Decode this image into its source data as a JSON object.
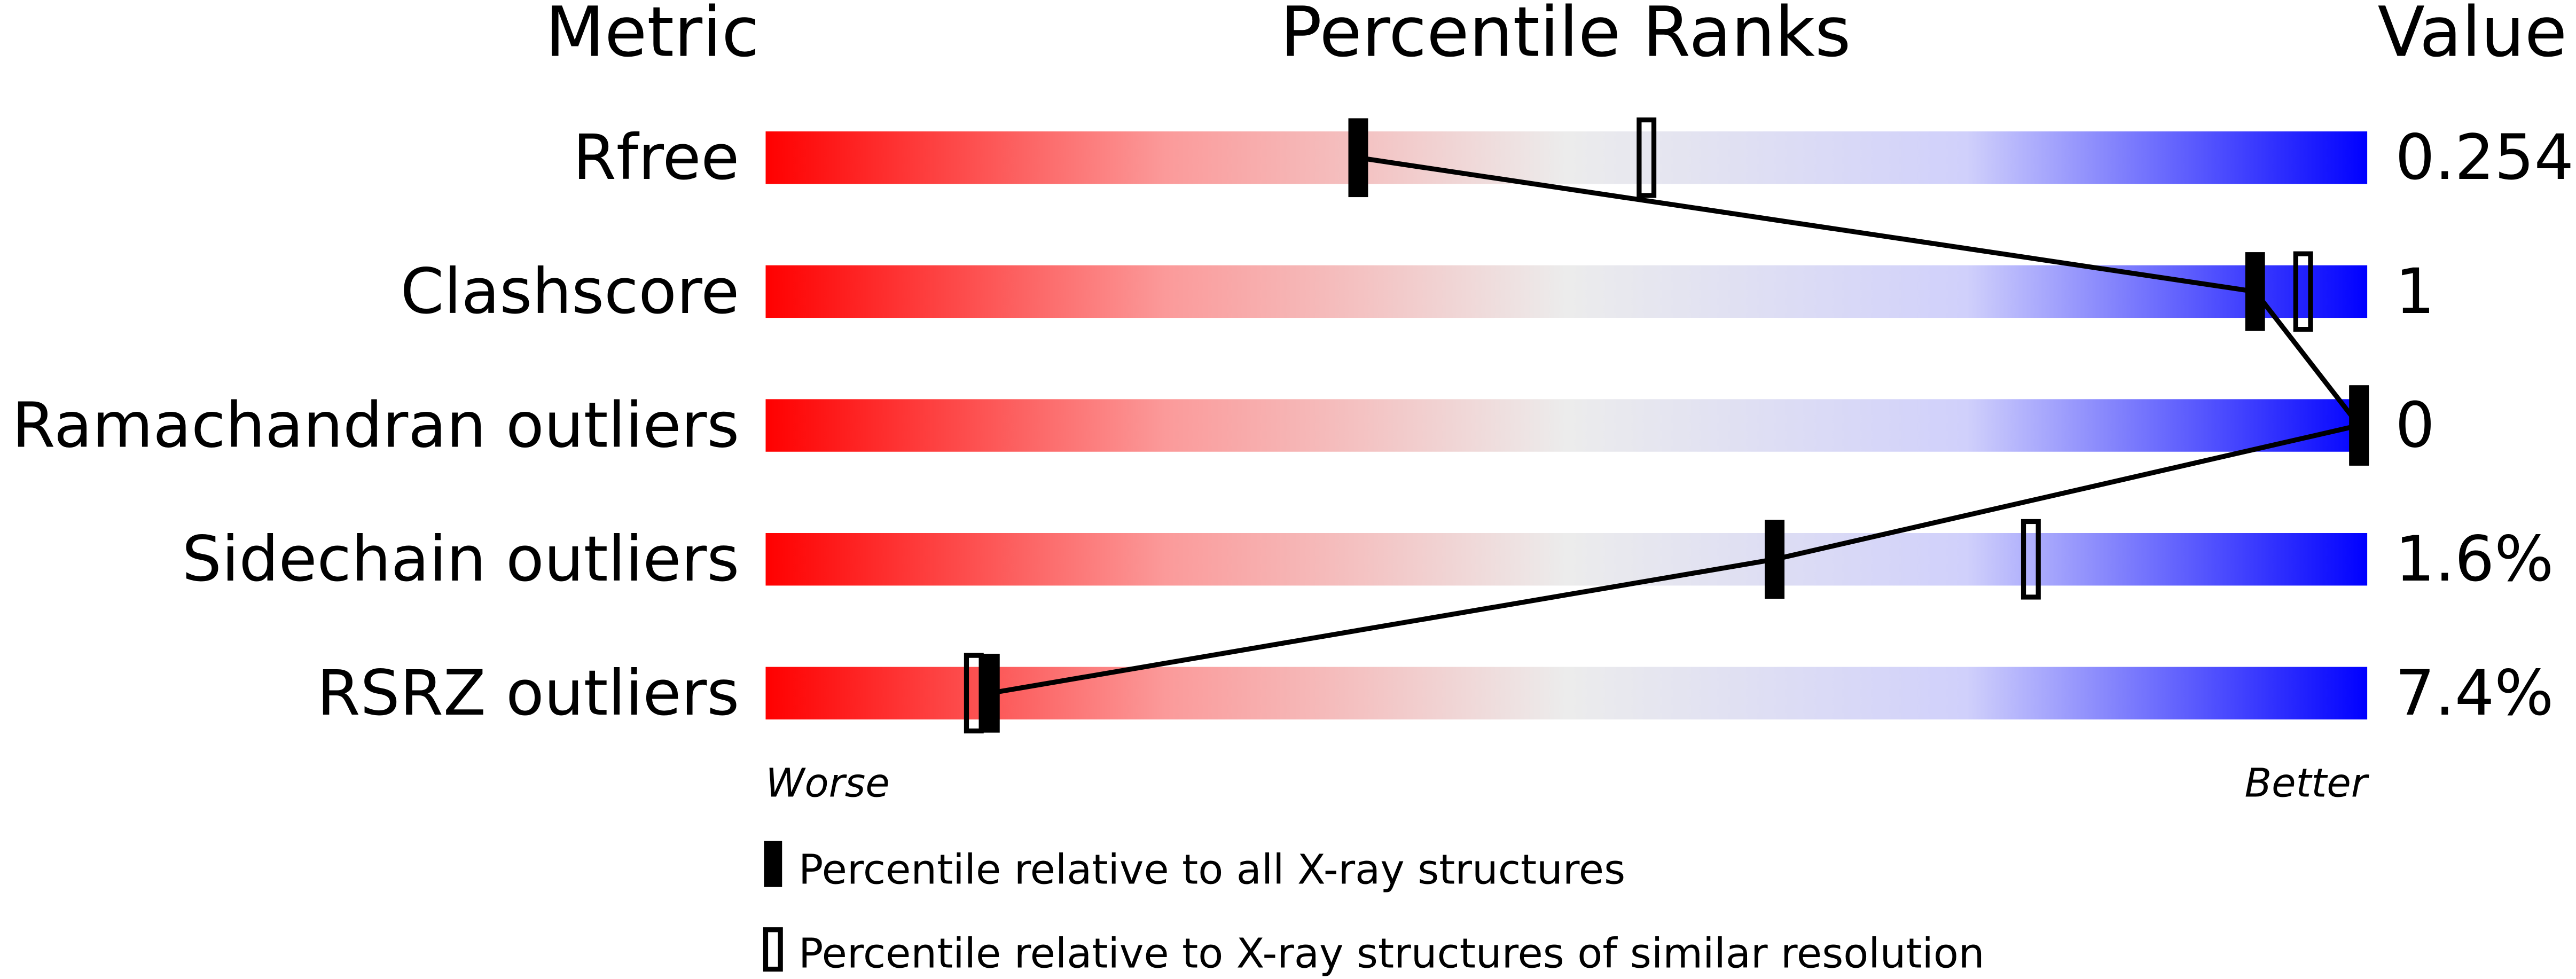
{
  "chart_data": {
    "type": "percentile-slider",
    "headers": {
      "metric": "Metric",
      "ranks": "Percentile Ranks",
      "value": "Value"
    },
    "xlim": [
      0,
      100
    ],
    "axis_ends": {
      "left": "Worse",
      "right": "Better"
    },
    "colors": {
      "worse": "#ff0000",
      "middle": "#eeeeee",
      "better": "#0000ff",
      "marker": "#000000"
    },
    "rows": [
      {
        "metric": "Rfree",
        "value": "0.254",
        "percentile_all": 37,
        "percentile_similar": 55
      },
      {
        "metric": "Clashscore",
        "value": "1",
        "percentile_all": 93,
        "percentile_similar": 96
      },
      {
        "metric": "Ramachandran outliers",
        "value": "0",
        "percentile_all": 100,
        "percentile_similar": 100
      },
      {
        "metric": "Sidechain outliers",
        "value": "1.6%",
        "percentile_all": 63,
        "percentile_similar": 79
      },
      {
        "metric": "RSRZ outliers",
        "value": "7.4%",
        "percentile_all": 14,
        "percentile_similar": 13
      }
    ],
    "legend": [
      {
        "marker": "filled",
        "label": "Percentile relative to all X-ray structures"
      },
      {
        "marker": "open",
        "label": "Percentile relative to X-ray structures of similar resolution"
      }
    ]
  }
}
